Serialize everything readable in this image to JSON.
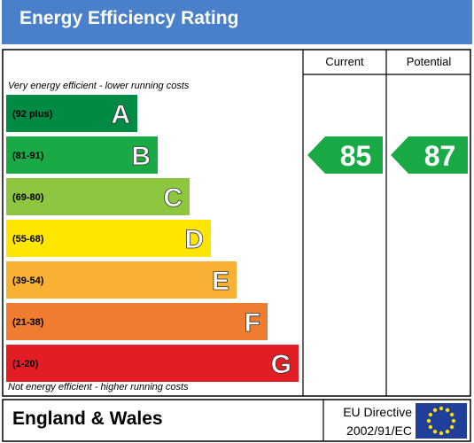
{
  "header": {
    "title": "Energy Efficiency Rating"
  },
  "columns": {
    "current": "Current",
    "potential": "Potential"
  },
  "notes": {
    "top": "Very energy efficient - lower running costs",
    "bottom": "Not energy efficient - higher running costs"
  },
  "footer": {
    "region": "England & Wales",
    "directive_line1": "EU Directive",
    "directive_line2": "2002/91/EC"
  },
  "chart_data": {
    "type": "bar",
    "title": "Energy Efficiency Rating",
    "categories": [
      "A",
      "B",
      "C",
      "D",
      "E",
      "F",
      "G"
    ],
    "ranges": [
      "(92 plus)",
      "(81-91)",
      "(69-80)",
      "(55-68)",
      "(39-54)",
      "(21-38)",
      "(1-20)"
    ],
    "colors": [
      "#008a44",
      "#1aaa45",
      "#8dc63f",
      "#ffe600",
      "#f8b133",
      "#ee7d31",
      "#e31d25"
    ],
    "current": {
      "value": 85,
      "band": "B",
      "color": "#1aaa45"
    },
    "potential": {
      "value": 87,
      "band": "B",
      "color": "#1aaa45"
    }
  }
}
